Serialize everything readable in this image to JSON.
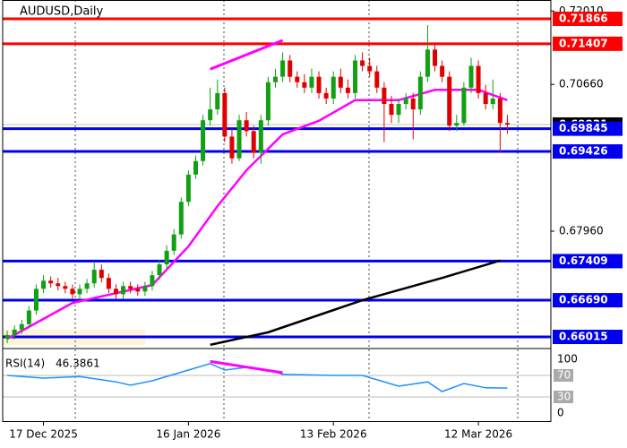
{
  "chart_data": {
    "type": "candlestick",
    "title": "AUDUSD,Daily",
    "up_color": "#11a011",
    "down_color": "#e00000",
    "xlim": [
      -1,
      75
    ],
    "ylim": [
      0.65867,
      0.72212
    ],
    "yticks": [
      {
        "value": 0.7201,
        "label": "0.72010"
      },
      {
        "value": 0.7066,
        "label": "0.70660"
      },
      {
        "value": 0.6796,
        "label": "0.67960"
      }
    ],
    "xticks": [
      {
        "value": 5,
        "label": "17 Dec 2025"
      },
      {
        "value": 25,
        "label": "16 Jan 2026"
      },
      {
        "value": 45,
        "label": "13 Feb 2026"
      },
      {
        "value": 65,
        "label": "12 Mar 2026"
      }
    ],
    "candles": {
      "open": [
        0.6598,
        0.6605,
        0.6615,
        0.6625,
        0.665,
        0.669,
        0.6705,
        0.67,
        0.6695,
        0.669,
        0.668,
        0.669,
        0.67,
        0.6725,
        0.671,
        0.669,
        0.668,
        0.6695,
        0.669,
        0.6685,
        0.6695,
        0.6715,
        0.6735,
        0.676,
        0.679,
        0.685,
        0.69,
        0.6925,
        0.7,
        0.702,
        0.705,
        0.697,
        0.693,
        0.7,
        0.698,
        0.694,
        0.7,
        0.707,
        0.708,
        0.711,
        0.708,
        0.707,
        0.706,
        0.708,
        0.705,
        0.704,
        0.708,
        0.706,
        0.705,
        0.711,
        0.71,
        0.709,
        0.706,
        0.703,
        0.701,
        0.703,
        0.704,
        0.702,
        0.708,
        0.713,
        0.71,
        0.708,
        0.699,
        0.6995,
        0.706,
        0.71,
        0.705,
        0.703,
        0.704,
        0.6995
      ],
      "high": [
        0.6613,
        0.6623,
        0.6633,
        0.6658,
        0.6698,
        0.6715,
        0.6713,
        0.671,
        0.6703,
        0.6698,
        0.6698,
        0.6708,
        0.674,
        0.6735,
        0.6718,
        0.6698,
        0.6703,
        0.6703,
        0.6698,
        0.6703,
        0.6723,
        0.6743,
        0.677,
        0.68,
        0.6858,
        0.6908,
        0.6935,
        0.701,
        0.706,
        0.7075,
        0.706,
        0.6985,
        0.701,
        0.7015,
        0.699,
        0.701,
        0.708,
        0.7095,
        0.7125,
        0.712,
        0.709,
        0.7085,
        0.7095,
        0.709,
        0.706,
        0.709,
        0.7095,
        0.7075,
        0.712,
        0.7125,
        0.7115,
        0.71,
        0.707,
        0.7045,
        0.704,
        0.705,
        0.705,
        0.709,
        0.7175,
        0.714,
        0.711,
        0.709,
        0.701,
        0.707,
        0.7115,
        0.711,
        0.7065,
        0.7075,
        0.705,
        0.701
      ],
      "low": [
        0.659,
        0.6597,
        0.6607,
        0.6617,
        0.6642,
        0.6682,
        0.6692,
        0.6687,
        0.6682,
        0.6672,
        0.6672,
        0.6682,
        0.6692,
        0.6702,
        0.6682,
        0.6672,
        0.6672,
        0.6682,
        0.6677,
        0.6677,
        0.6687,
        0.6707,
        0.6727,
        0.6752,
        0.6782,
        0.6842,
        0.6892,
        0.6917,
        0.699,
        0.701,
        0.696,
        0.692,
        0.6925,
        0.697,
        0.693,
        0.692,
        0.699,
        0.706,
        0.707,
        0.707,
        0.706,
        0.705,
        0.705,
        0.704,
        0.703,
        0.703,
        0.705,
        0.704,
        0.704,
        0.709,
        0.708,
        0.705,
        0.696,
        0.6995,
        0.6995,
        0.702,
        0.6965,
        0.701,
        0.707,
        0.709,
        0.707,
        0.698,
        0.698,
        0.699,
        0.705,
        0.704,
        0.702,
        0.702,
        0.694,
        0.6975
      ],
      "close": [
        0.6605,
        0.6615,
        0.6625,
        0.665,
        0.669,
        0.6705,
        0.67,
        0.6695,
        0.669,
        0.668,
        0.669,
        0.67,
        0.6725,
        0.671,
        0.669,
        0.668,
        0.6695,
        0.669,
        0.6685,
        0.6695,
        0.6715,
        0.6735,
        0.676,
        0.679,
        0.685,
        0.69,
        0.6925,
        0.7,
        0.702,
        0.705,
        0.697,
        0.693,
        0.7,
        0.698,
        0.694,
        0.7,
        0.707,
        0.708,
        0.711,
        0.708,
        0.707,
        0.706,
        0.708,
        0.705,
        0.704,
        0.708,
        0.706,
        0.705,
        0.711,
        0.71,
        0.709,
        0.706,
        0.703,
        0.701,
        0.703,
        0.704,
        0.702,
        0.708,
        0.713,
        0.71,
        0.708,
        0.699,
        0.6995,
        0.706,
        0.71,
        0.705,
        0.703,
        0.704,
        0.6995,
        0.6992
      ]
    },
    "current_price": 0.69921,
    "levels": [
      {
        "value": 0.71866,
        "color": "#ff0000"
      },
      {
        "value": 0.71407,
        "color": "#ff0000"
      },
      {
        "value": 0.69845,
        "color": "#0000ee"
      },
      {
        "value": 0.69426,
        "color": "#0000ee"
      },
      {
        "value": 0.67409,
        "color": "#0000ee"
      },
      {
        "value": 0.6669,
        "label": "0.66690",
        "color": "#0000ee"
      },
      {
        "value": 0.66015,
        "color": "#0000ee"
      }
    ],
    "ma20": {
      "color": "#ff00ff",
      "x": [
        0,
        9,
        20,
        25,
        29,
        33,
        38,
        43,
        48,
        54,
        59,
        65,
        69
      ],
      "values": [
        0.6598,
        0.6664,
        0.6697,
        0.6768,
        0.6842,
        0.6908,
        0.6974,
        0.6999,
        0.7037,
        0.7037,
        0.7056,
        0.7056,
        0.7037
      ]
    },
    "ma200": {
      "color": "#000000",
      "x": [
        28,
        36,
        49,
        60,
        68
      ],
      "values": [
        0.6587,
        0.661,
        0.6669,
        0.671,
        0.6742
      ]
    },
    "trendline": {
      "color": "#ff00ff",
      "x": [
        28,
        38
      ],
      "values": [
        0.7094,
        0.7147
      ]
    },
    "rsi": {
      "label": "RSI(14)",
      "value": 46.3861,
      "color": "#1e90ff",
      "ylim": [
        -15,
        115
      ],
      "yticks": [
        100,
        70,
        30,
        0
      ],
      "levels": [
        70,
        30
      ],
      "x": [
        0,
        5,
        10,
        15,
        17,
        20,
        25,
        28,
        30,
        33,
        36,
        38,
        45,
        49,
        54,
        58,
        60,
        63,
        66,
        69
      ],
      "values": [
        70,
        65,
        68,
        58,
        52,
        60,
        80,
        92,
        80,
        85,
        80,
        72,
        70,
        70,
        50,
        58,
        40,
        55,
        47,
        46.3861
      ],
      "trendline": {
        "color": "#ff00ff",
        "x": [
          28,
          38
        ],
        "values": [
          96,
          75
        ]
      }
    }
  }
}
